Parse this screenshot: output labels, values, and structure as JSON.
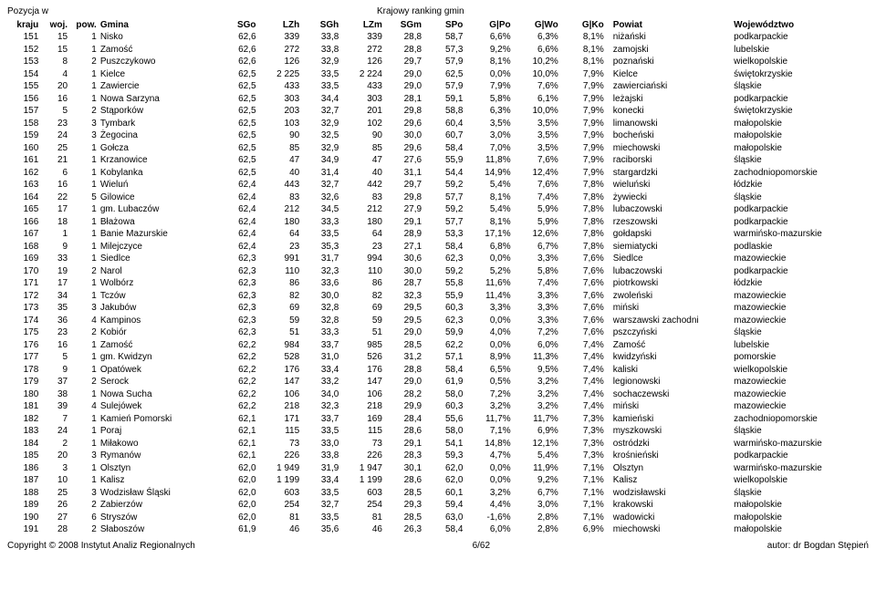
{
  "header": {
    "top_left": "Pozycja w",
    "top_center": "Krajowy ranking gmin",
    "cols": {
      "kraju": "kraju",
      "woj": "woj.",
      "pow": "pow.",
      "gmina": "Gmina",
      "sgo": "SGo",
      "lzh": "LZh",
      "sgh": "SGh",
      "lzm": "LZm",
      "sgm": "SGm",
      "spo": "SPo",
      "gpo": "G|Po",
      "gwo": "G|Wo",
      "gko": "G|Ko",
      "powiat": "Powiat",
      "woje": "Województwo"
    }
  },
  "footer": {
    "left": "Copyright © 2008 Instytut Analiz Regionalnych",
    "center": "6/62",
    "right": "autor: dr Bogdan Stępień"
  },
  "rows": [
    {
      "kraj": "151",
      "woj": "15",
      "pow": "1",
      "gmina": "Nisko",
      "sgo": "62,6",
      "lzh": "339",
      "sgh": "33,8",
      "lzm": "339",
      "sgm": "28,8",
      "spo": "58,7",
      "gpo": "6,6%",
      "gwo": "6,3%",
      "gko": "8,1%",
      "powiat": "niżański",
      "woje": "podkarpackie"
    },
    {
      "kraj": "152",
      "woj": "15",
      "pow": "1",
      "gmina": "Zamość",
      "sgo": "62,6",
      "lzh": "272",
      "sgh": "33,8",
      "lzm": "272",
      "sgm": "28,8",
      "spo": "57,3",
      "gpo": "9,2%",
      "gwo": "6,6%",
      "gko": "8,1%",
      "powiat": "zamojski",
      "woje": "lubelskie"
    },
    {
      "kraj": "153",
      "woj": "8",
      "pow": "2",
      "gmina": "Puszczykowo",
      "sgo": "62,6",
      "lzh": "126",
      "sgh": "32,9",
      "lzm": "126",
      "sgm": "29,7",
      "spo": "57,9",
      "gpo": "8,1%",
      "gwo": "10,2%",
      "gko": "8,1%",
      "powiat": "poznański",
      "woje": "wielkopolskie"
    },
    {
      "kraj": "154",
      "woj": "4",
      "pow": "1",
      "gmina": "Kielce",
      "sgo": "62,5",
      "lzh": "2 225",
      "sgh": "33,5",
      "lzm": "2 224",
      "sgm": "29,0",
      "spo": "62,5",
      "gpo": "0,0%",
      "gwo": "10,0%",
      "gko": "7,9%",
      "powiat": "Kielce",
      "woje": "świętokrzyskie"
    },
    {
      "kraj": "155",
      "woj": "20",
      "pow": "1",
      "gmina": "Zawiercie",
      "sgo": "62,5",
      "lzh": "433",
      "sgh": "33,5",
      "lzm": "433",
      "sgm": "29,0",
      "spo": "57,9",
      "gpo": "7,9%",
      "gwo": "7,6%",
      "gko": "7,9%",
      "powiat": "zawierciański",
      "woje": "śląskie"
    },
    {
      "kraj": "156",
      "woj": "16",
      "pow": "1",
      "gmina": "Nowa Sarzyna",
      "sgo": "62,5",
      "lzh": "303",
      "sgh": "34,4",
      "lzm": "303",
      "sgm": "28,1",
      "spo": "59,1",
      "gpo": "5,8%",
      "gwo": "6,1%",
      "gko": "7,9%",
      "powiat": "leżajski",
      "woje": "podkarpackie"
    },
    {
      "kraj": "157",
      "woj": "5",
      "pow": "2",
      "gmina": "Stąporków",
      "sgo": "62,5",
      "lzh": "203",
      "sgh": "32,7",
      "lzm": "201",
      "sgm": "29,8",
      "spo": "58,8",
      "gpo": "6,3%",
      "gwo": "10,0%",
      "gko": "7,9%",
      "powiat": "konecki",
      "woje": "świętokrzyskie"
    },
    {
      "kraj": "158",
      "woj": "23",
      "pow": "3",
      "gmina": "Tymbark",
      "sgo": "62,5",
      "lzh": "103",
      "sgh": "32,9",
      "lzm": "102",
      "sgm": "29,6",
      "spo": "60,4",
      "gpo": "3,5%",
      "gwo": "3,5%",
      "gko": "7,9%",
      "powiat": "limanowski",
      "woje": "małopolskie"
    },
    {
      "kraj": "159",
      "woj": "24",
      "pow": "3",
      "gmina": "Żegocina",
      "sgo": "62,5",
      "lzh": "90",
      "sgh": "32,5",
      "lzm": "90",
      "sgm": "30,0",
      "spo": "60,7",
      "gpo": "3,0%",
      "gwo": "3,5%",
      "gko": "7,9%",
      "powiat": "bocheński",
      "woje": "małopolskie"
    },
    {
      "kraj": "160",
      "woj": "25",
      "pow": "1",
      "gmina": "Gołcza",
      "sgo": "62,5",
      "lzh": "85",
      "sgh": "32,9",
      "lzm": "85",
      "sgm": "29,6",
      "spo": "58,4",
      "gpo": "7,0%",
      "gwo": "3,5%",
      "gko": "7,9%",
      "powiat": "miechowski",
      "woje": "małopolskie"
    },
    {
      "kraj": "161",
      "woj": "21",
      "pow": "1",
      "gmina": "Krzanowice",
      "sgo": "62,5",
      "lzh": "47",
      "sgh": "34,9",
      "lzm": "47",
      "sgm": "27,6",
      "spo": "55,9",
      "gpo": "11,8%",
      "gwo": "7,6%",
      "gko": "7,9%",
      "powiat": "raciborski",
      "woje": "śląskie"
    },
    {
      "kraj": "162",
      "woj": "6",
      "pow": "1",
      "gmina": "Kobylanka",
      "sgo": "62,5",
      "lzh": "40",
      "sgh": "31,4",
      "lzm": "40",
      "sgm": "31,1",
      "spo": "54,4",
      "gpo": "14,9%",
      "gwo": "12,4%",
      "gko": "7,9%",
      "powiat": "stargardzki",
      "woje": "zachodniopomorskie"
    },
    {
      "kraj": "163",
      "woj": "16",
      "pow": "1",
      "gmina": "Wieluń",
      "sgo": "62,4",
      "lzh": "443",
      "sgh": "32,7",
      "lzm": "442",
      "sgm": "29,7",
      "spo": "59,2",
      "gpo": "5,4%",
      "gwo": "7,6%",
      "gko": "7,8%",
      "powiat": "wieluński",
      "woje": "łódzkie"
    },
    {
      "kraj": "164",
      "woj": "22",
      "pow": "5",
      "gmina": "Gilowice",
      "sgo": "62,4",
      "lzh": "83",
      "sgh": "32,6",
      "lzm": "83",
      "sgm": "29,8",
      "spo": "57,7",
      "gpo": "8,1%",
      "gwo": "7,4%",
      "gko": "7,8%",
      "powiat": "żywiecki",
      "woje": "śląskie"
    },
    {
      "kraj": "165",
      "woj": "17",
      "pow": "1",
      "gmina": "gm. Lubaczów",
      "sgo": "62,4",
      "lzh": "212",
      "sgh": "34,5",
      "lzm": "212",
      "sgm": "27,9",
      "spo": "59,2",
      "gpo": "5,4%",
      "gwo": "5,9%",
      "gko": "7,8%",
      "powiat": "lubaczowski",
      "woje": "podkarpackie"
    },
    {
      "kraj": "166",
      "woj": "18",
      "pow": "1",
      "gmina": "Błażowa",
      "sgo": "62,4",
      "lzh": "180",
      "sgh": "33,3",
      "lzm": "180",
      "sgm": "29,1",
      "spo": "57,7",
      "gpo": "8,1%",
      "gwo": "5,9%",
      "gko": "7,8%",
      "powiat": "rzeszowski",
      "woje": "podkarpackie"
    },
    {
      "kraj": "167",
      "woj": "1",
      "pow": "1",
      "gmina": "Banie Mazurskie",
      "sgo": "62,4",
      "lzh": "64",
      "sgh": "33,5",
      "lzm": "64",
      "sgm": "28,9",
      "spo": "53,3",
      "gpo": "17,1%",
      "gwo": "12,6%",
      "gko": "7,8%",
      "powiat": "gołdapski",
      "woje": "warmińsko-mazurskie"
    },
    {
      "kraj": "168",
      "woj": "9",
      "pow": "1",
      "gmina": "Milejczyce",
      "sgo": "62,4",
      "lzh": "23",
      "sgh": "35,3",
      "lzm": "23",
      "sgm": "27,1",
      "spo": "58,4",
      "gpo": "6,8%",
      "gwo": "6,7%",
      "gko": "7,8%",
      "powiat": "siemiatycki",
      "woje": "podlaskie"
    },
    {
      "kraj": "169",
      "woj": "33",
      "pow": "1",
      "gmina": "Siedlce",
      "sgo": "62,3",
      "lzh": "991",
      "sgh": "31,7",
      "lzm": "994",
      "sgm": "30,6",
      "spo": "62,3",
      "gpo": "0,0%",
      "gwo": "3,3%",
      "gko": "7,6%",
      "powiat": "Siedlce",
      "woje": "mazowieckie"
    },
    {
      "kraj": "170",
      "woj": "19",
      "pow": "2",
      "gmina": "Narol",
      "sgo": "62,3",
      "lzh": "110",
      "sgh": "32,3",
      "lzm": "110",
      "sgm": "30,0",
      "spo": "59,2",
      "gpo": "5,2%",
      "gwo": "5,8%",
      "gko": "7,6%",
      "powiat": "lubaczowski",
      "woje": "podkarpackie"
    },
    {
      "kraj": "171",
      "woj": "17",
      "pow": "1",
      "gmina": "Wolbórz",
      "sgo": "62,3",
      "lzh": "86",
      "sgh": "33,6",
      "lzm": "86",
      "sgm": "28,7",
      "spo": "55,8",
      "gpo": "11,6%",
      "gwo": "7,4%",
      "gko": "7,6%",
      "powiat": "piotrkowski",
      "woje": "łódzkie"
    },
    {
      "kraj": "172",
      "woj": "34",
      "pow": "1",
      "gmina": "Tczów",
      "sgo": "62,3",
      "lzh": "82",
      "sgh": "30,0",
      "lzm": "82",
      "sgm": "32,3",
      "spo": "55,9",
      "gpo": "11,4%",
      "gwo": "3,3%",
      "gko": "7,6%",
      "powiat": "zwoleński",
      "woje": "mazowieckie"
    },
    {
      "kraj": "173",
      "woj": "35",
      "pow": "3",
      "gmina": "Jakubów",
      "sgo": "62,3",
      "lzh": "69",
      "sgh": "32,8",
      "lzm": "69",
      "sgm": "29,5",
      "spo": "60,3",
      "gpo": "3,3%",
      "gwo": "3,3%",
      "gko": "7,6%",
      "powiat": "miński",
      "woje": "mazowieckie"
    },
    {
      "kraj": "174",
      "woj": "36",
      "pow": "4",
      "gmina": "Kampinos",
      "sgo": "62,3",
      "lzh": "59",
      "sgh": "32,8",
      "lzm": "59",
      "sgm": "29,5",
      "spo": "62,3",
      "gpo": "0,0%",
      "gwo": "3,3%",
      "gko": "7,6%",
      "powiat": "warszawski zachodni",
      "woje": "mazowieckie"
    },
    {
      "kraj": "175",
      "woj": "23",
      "pow": "2",
      "gmina": "Kobiór",
      "sgo": "62,3",
      "lzh": "51",
      "sgh": "33,3",
      "lzm": "51",
      "sgm": "29,0",
      "spo": "59,9",
      "gpo": "4,0%",
      "gwo": "7,2%",
      "gko": "7,6%",
      "powiat": "pszczyński",
      "woje": "śląskie"
    },
    {
      "kraj": "176",
      "woj": "16",
      "pow": "1",
      "gmina": "Zamość",
      "sgo": "62,2",
      "lzh": "984",
      "sgh": "33,7",
      "lzm": "985",
      "sgm": "28,5",
      "spo": "62,2",
      "gpo": "0,0%",
      "gwo": "6,0%",
      "gko": "7,4%",
      "powiat": "Zamość",
      "woje": "lubelskie"
    },
    {
      "kraj": "177",
      "woj": "5",
      "pow": "1",
      "gmina": "gm. Kwidzyn",
      "sgo": "62,2",
      "lzh": "528",
      "sgh": "31,0",
      "lzm": "526",
      "sgm": "31,2",
      "spo": "57,1",
      "gpo": "8,9%",
      "gwo": "11,3%",
      "gko": "7,4%",
      "powiat": "kwidzyński",
      "woje": "pomorskie"
    },
    {
      "kraj": "178",
      "woj": "9",
      "pow": "1",
      "gmina": "Opatówek",
      "sgo": "62,2",
      "lzh": "176",
      "sgh": "33,4",
      "lzm": "176",
      "sgm": "28,8",
      "spo": "58,4",
      "gpo": "6,5%",
      "gwo": "9,5%",
      "gko": "7,4%",
      "powiat": "kaliski",
      "woje": "wielkopolskie"
    },
    {
      "kraj": "179",
      "woj": "37",
      "pow": "2",
      "gmina": "Serock",
      "sgo": "62,2",
      "lzh": "147",
      "sgh": "33,2",
      "lzm": "147",
      "sgm": "29,0",
      "spo": "61,9",
      "gpo": "0,5%",
      "gwo": "3,2%",
      "gko": "7,4%",
      "powiat": "legionowski",
      "woje": "mazowieckie"
    },
    {
      "kraj": "180",
      "woj": "38",
      "pow": "1",
      "gmina": "Nowa Sucha",
      "sgo": "62,2",
      "lzh": "106",
      "sgh": "34,0",
      "lzm": "106",
      "sgm": "28,2",
      "spo": "58,0",
      "gpo": "7,2%",
      "gwo": "3,2%",
      "gko": "7,4%",
      "powiat": "sochaczewski",
      "woje": "mazowieckie"
    },
    {
      "kraj": "181",
      "woj": "39",
      "pow": "4",
      "gmina": "Sulejówek",
      "sgo": "62,2",
      "lzh": "218",
      "sgh": "32,3",
      "lzm": "218",
      "sgm": "29,9",
      "spo": "60,3",
      "gpo": "3,2%",
      "gwo": "3,2%",
      "gko": "7,4%",
      "powiat": "miński",
      "woje": "mazowieckie"
    },
    {
      "kraj": "182",
      "woj": "7",
      "pow": "1",
      "gmina": "Kamień Pomorski",
      "sgo": "62,1",
      "lzh": "171",
      "sgh": "33,7",
      "lzm": "169",
      "sgm": "28,4",
      "spo": "55,6",
      "gpo": "11,7%",
      "gwo": "11,7%",
      "gko": "7,3%",
      "powiat": "kamieński",
      "woje": "zachodniopomorskie"
    },
    {
      "kraj": "183",
      "woj": "24",
      "pow": "1",
      "gmina": "Poraj",
      "sgo": "62,1",
      "lzh": "115",
      "sgh": "33,5",
      "lzm": "115",
      "sgm": "28,6",
      "spo": "58,0",
      "gpo": "7,1%",
      "gwo": "6,9%",
      "gko": "7,3%",
      "powiat": "myszkowski",
      "woje": "śląskie"
    },
    {
      "kraj": "184",
      "woj": "2",
      "pow": "1",
      "gmina": "Miłakowo",
      "sgo": "62,1",
      "lzh": "73",
      "sgh": "33,0",
      "lzm": "73",
      "sgm": "29,1",
      "spo": "54,1",
      "gpo": "14,8%",
      "gwo": "12,1%",
      "gko": "7,3%",
      "powiat": "ostródzki",
      "woje": "warmińsko-mazurskie"
    },
    {
      "kraj": "185",
      "woj": "20",
      "pow": "3",
      "gmina": "Rymanów",
      "sgo": "62,1",
      "lzh": "226",
      "sgh": "33,8",
      "lzm": "226",
      "sgm": "28,3",
      "spo": "59,3",
      "gpo": "4,7%",
      "gwo": "5,4%",
      "gko": "7,3%",
      "powiat": "krośnieński",
      "woje": "podkarpackie"
    },
    {
      "kraj": "186",
      "woj": "3",
      "pow": "1",
      "gmina": "Olsztyn",
      "sgo": "62,0",
      "lzh": "1 949",
      "sgh": "31,9",
      "lzm": "1 947",
      "sgm": "30,1",
      "spo": "62,0",
      "gpo": "0,0%",
      "gwo": "11,9%",
      "gko": "7,1%",
      "powiat": "Olsztyn",
      "woje": "warmińsko-mazurskie"
    },
    {
      "kraj": "187",
      "woj": "10",
      "pow": "1",
      "gmina": "Kalisz",
      "sgo": "62,0",
      "lzh": "1 199",
      "sgh": "33,4",
      "lzm": "1 199",
      "sgm": "28,6",
      "spo": "62,0",
      "gpo": "0,0%",
      "gwo": "9,2%",
      "gko": "7,1%",
      "powiat": "Kalisz",
      "woje": "wielkopolskie"
    },
    {
      "kraj": "188",
      "woj": "25",
      "pow": "3",
      "gmina": "Wodzisław Śląski",
      "sgo": "62,0",
      "lzh": "603",
      "sgh": "33,5",
      "lzm": "603",
      "sgm": "28,5",
      "spo": "60,1",
      "gpo": "3,2%",
      "gwo": "6,7%",
      "gko": "7,1%",
      "powiat": "wodzisławski",
      "woje": "śląskie"
    },
    {
      "kraj": "189",
      "woj": "26",
      "pow": "2",
      "gmina": "Zabierzów",
      "sgo": "62,0",
      "lzh": "254",
      "sgh": "32,7",
      "lzm": "254",
      "sgm": "29,3",
      "spo": "59,4",
      "gpo": "4,4%",
      "gwo": "3,0%",
      "gko": "7,1%",
      "powiat": "krakowski",
      "woje": "małopolskie"
    },
    {
      "kraj": "190",
      "woj": "27",
      "pow": "6",
      "gmina": "Stryszów",
      "sgo": "62,0",
      "lzh": "81",
      "sgh": "33,5",
      "lzm": "81",
      "sgm": "28,5",
      "spo": "63,0",
      "gpo": "-1,6%",
      "gwo": "2,8%",
      "gko": "7,1%",
      "powiat": "wadowicki",
      "woje": "małopolskie"
    },
    {
      "kraj": "191",
      "woj": "28",
      "pow": "2",
      "gmina": "Słaboszów",
      "sgo": "61,9",
      "lzh": "46",
      "sgh": "35,6",
      "lzm": "46",
      "sgm": "26,3",
      "spo": "58,4",
      "gpo": "6,0%",
      "gwo": "2,8%",
      "gko": "6,9%",
      "powiat": "miechowski",
      "woje": "małopolskie"
    }
  ]
}
